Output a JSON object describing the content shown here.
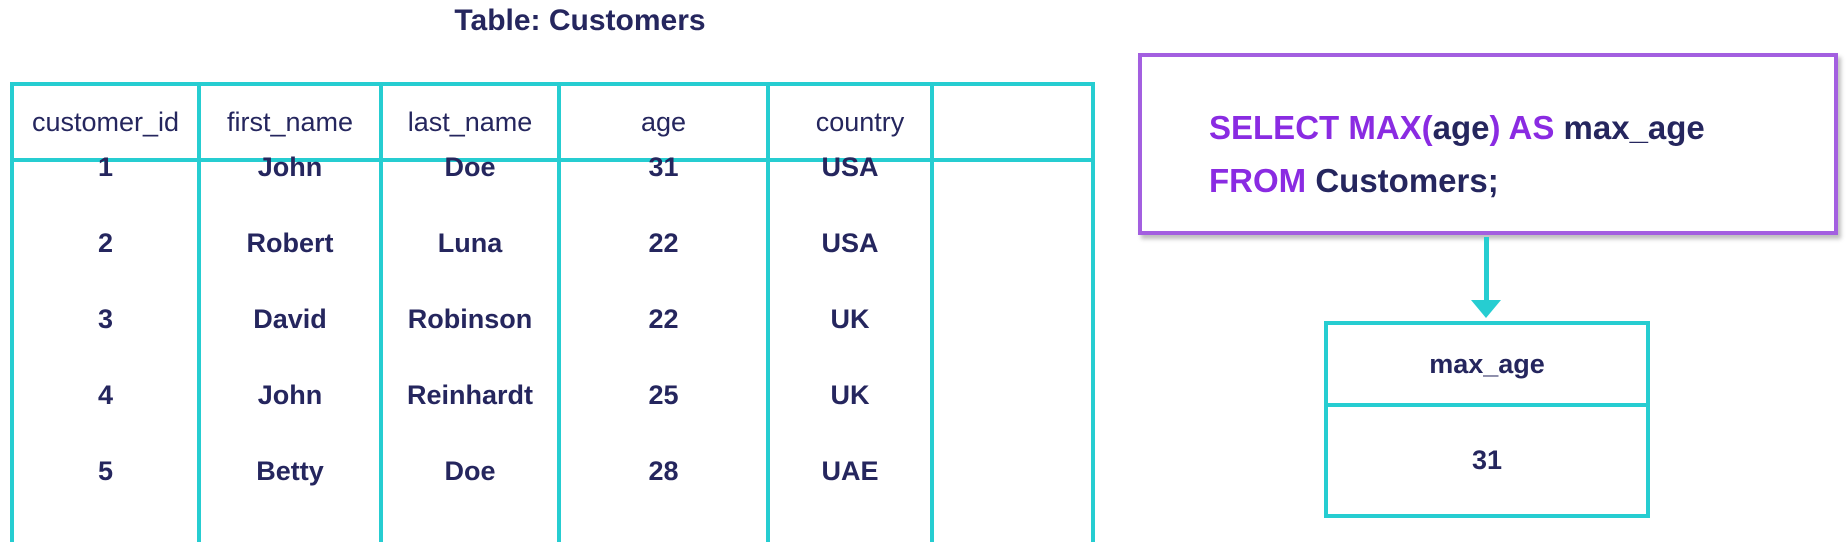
{
  "title": "Table: Customers",
  "customers_table": {
    "columns": [
      "customer_id",
      "first_name",
      "last_name",
      "age",
      "country"
    ],
    "rows": [
      [
        "1",
        "John",
        "Doe",
        "31",
        "USA"
      ],
      [
        "2",
        "Robert",
        "Luna",
        "22",
        "USA"
      ],
      [
        "3",
        "David",
        "Robinson",
        "22",
        "UK"
      ],
      [
        "4",
        "John",
        "Reinhardt",
        "25",
        "UK"
      ],
      [
        "5",
        "Betty",
        "Doe",
        "28",
        "UAE"
      ]
    ]
  },
  "query": {
    "line1": [
      {
        "text": "SELECT MAX(",
        "kind": "keyword"
      },
      {
        "text": "age",
        "kind": "plain"
      },
      {
        "text": ")",
        "kind": "keyword"
      },
      {
        "text": " AS ",
        "kind": "keyword"
      },
      {
        "text": "max_age",
        "kind": "plain"
      }
    ],
    "line2": [
      {
        "text": "FROM ",
        "kind": "keyword"
      },
      {
        "text": "Customers;",
        "kind": "plain"
      }
    ]
  },
  "result_table": {
    "column": "max_age",
    "value": "31"
  },
  "colors": {
    "table_border": "#26cdd1",
    "query_border": "#a35fe0",
    "keyword": "#8a2be2",
    "text": "#25265e"
  }
}
